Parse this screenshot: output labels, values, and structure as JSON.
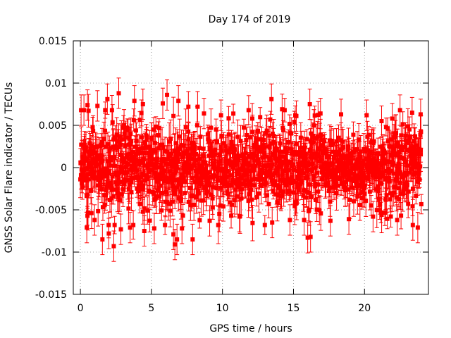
{
  "chart_data": {
    "type": "scatter",
    "title": "Day 174 of 2019",
    "xlabel": "GPS time / hours",
    "ylabel": "GNSS Solar Flare indicator / TECUs",
    "xlim": [
      -0.5,
      24.5
    ],
    "ylim": [
      -0.015,
      0.015
    ],
    "x_ticks": [
      0,
      5,
      10,
      15,
      20
    ],
    "x_tick_labels": [
      "0",
      "5",
      "10",
      "15",
      "20"
    ],
    "y_ticks": [
      -0.015,
      -0.01,
      -0.005,
      0,
      0.005,
      0.01,
      0.015
    ],
    "y_tick_labels": [
      "-0.015",
      "-0.01",
      "-0.005",
      "0",
      "0.005",
      "0.01",
      "0.015"
    ],
    "grid": true,
    "marker": "filled-square",
    "error_bars": true,
    "series_color": "#ff0000",
    "grid_color": "#a0a0a0",
    "series": [
      {
        "name": "solar flare indicator",
        "x_range": [
          0,
          24
        ],
        "typical_spread": 0.0025,
        "typical_error": 0.0015,
        "highlighted_points": [
          {
            "x": 0.05,
            "y": 0.0068
          },
          {
            "x": 0.25,
            "y": 0.0068
          },
          {
            "x": 0.5,
            "y": 0.0074
          },
          {
            "x": 0.45,
            "y": -0.0071
          },
          {
            "x": 1.0,
            "y": -0.0062
          },
          {
            "x": 1.2,
            "y": 0.0073
          },
          {
            "x": 1.55,
            "y": -0.0085
          },
          {
            "x": 1.9,
            "y": 0.0081
          },
          {
            "x": 2.0,
            "y": -0.0078
          },
          {
            "x": 2.35,
            "y": -0.0093
          },
          {
            "x": 2.7,
            "y": 0.0088
          },
          {
            "x": 2.85,
            "y": -0.0073
          },
          {
            "x": 3.5,
            "y": -0.0071
          },
          {
            "x": 3.8,
            "y": 0.0079
          },
          {
            "x": 4.5,
            "y": -0.0075
          },
          {
            "x": 4.4,
            "y": 0.0075
          },
          {
            "x": 5.2,
            "y": -0.0072
          },
          {
            "x": 5.8,
            "y": 0.0076
          },
          {
            "x": 6.1,
            "y": 0.0086
          },
          {
            "x": 6.55,
            "y": -0.0079
          },
          {
            "x": 6.65,
            "y": -0.0091
          },
          {
            "x": 6.8,
            "y": -0.0085
          },
          {
            "x": 6.9,
            "y": 0.0079
          },
          {
            "x": 7.15,
            "y": -0.0072
          },
          {
            "x": 7.6,
            "y": 0.0072
          },
          {
            "x": 7.9,
            "y": -0.0085
          },
          {
            "x": 8.25,
            "y": 0.0072
          },
          {
            "x": 8.7,
            "y": 0.0064
          },
          {
            "x": 9.1,
            "y": -0.0063
          },
          {
            "x": 9.9,
            "y": 0.0062
          },
          {
            "x": 11.2,
            "y": -0.0058
          },
          {
            "x": 12.1,
            "y": 0.0058
          },
          {
            "x": 13.45,
            "y": 0.0081
          },
          {
            "x": 13.5,
            "y": -0.0065
          },
          {
            "x": 14.2,
            "y": 0.0069
          },
          {
            "x": 14.75,
            "y": -0.0062
          },
          {
            "x": 15.2,
            "y": 0.0061
          },
          {
            "x": 15.75,
            "y": -0.0062
          },
          {
            "x": 16.0,
            "y": -0.0083
          },
          {
            "x": 16.2,
            "y": -0.0082
          },
          {
            "x": 16.15,
            "y": 0.0075
          },
          {
            "x": 16.9,
            "y": 0.0064
          },
          {
            "x": 17.6,
            "y": -0.0063
          },
          {
            "x": 18.35,
            "y": 0.0063
          },
          {
            "x": 18.9,
            "y": -0.0061
          },
          {
            "x": 20.15,
            "y": 0.0062
          },
          {
            "x": 20.6,
            "y": -0.0058
          },
          {
            "x": 21.2,
            "y": 0.0055
          },
          {
            "x": 21.95,
            "y": 0.0058
          },
          {
            "x": 22.3,
            "y": -0.0062
          },
          {
            "x": 22.5,
            "y": 0.0068
          },
          {
            "x": 23.35,
            "y": 0.0065
          },
          {
            "x": 23.4,
            "y": -0.0068
          },
          {
            "x": 23.75,
            "y": -0.0071
          },
          {
            "x": 23.95,
            "y": 0.0063
          }
        ]
      }
    ]
  }
}
